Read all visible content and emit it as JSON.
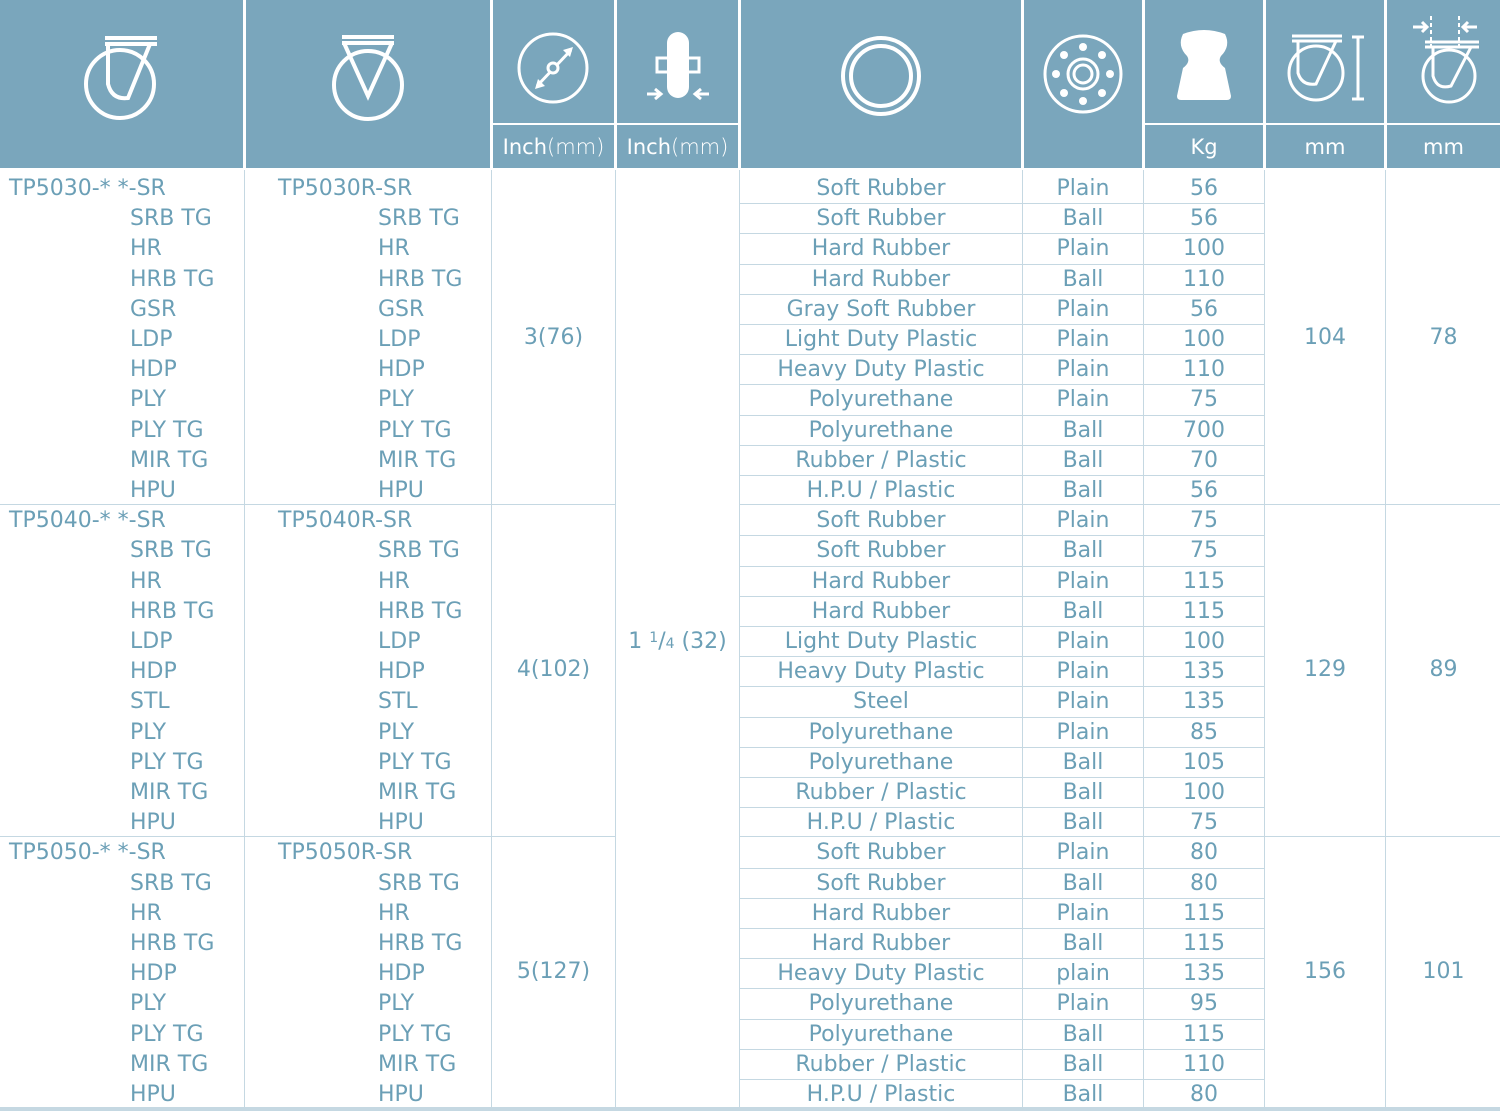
{
  "headers": {
    "diameter_unit_a": "Inch",
    "diameter_unit_b": "(mm)",
    "width_unit_a": "Inch",
    "width_unit_b": "(mm)",
    "load_unit": "Kg",
    "height_unit": "mm",
    "offset_unit": "mm"
  },
  "colors": {
    "header_bg": "#7aa6bc",
    "text": "#6b9fb6",
    "rule": "#c5d8e2"
  },
  "icons": [
    "swivel-caster-icon",
    "rigid-caster-icon",
    "wheel-diameter-icon",
    "wheel-width-icon",
    "tread-material-icon",
    "bearing-icon",
    "load-capacity-icon",
    "overall-height-icon",
    "swivel-offset-icon"
  ],
  "width_value": {
    "whole": "1 ",
    "num": "1",
    "slash": "/",
    "den": "4",
    "rest": " (32)"
  },
  "groups": [
    {
      "swivel_head": "TP5030-* *-SR",
      "rigid_head": "TP5030R-SR",
      "codes": [
        "SRB TG",
        "HR",
        "HRB TG",
        "GSR",
        "LDP",
        "HDP",
        "PLY",
        "PLY TG",
        "MIR TG",
        "HPU"
      ],
      "diameter": "3(76)",
      "height": "104",
      "offset": "78",
      "rows": [
        [
          "Soft Rubber",
          "Plain",
          "56"
        ],
        [
          "Soft Rubber",
          "Ball",
          "56"
        ],
        [
          "Hard Rubber",
          "Plain",
          "100"
        ],
        [
          "Hard Rubber",
          "Ball",
          "110"
        ],
        [
          "Gray Soft Rubber",
          "Plain",
          "56"
        ],
        [
          "Light Duty Plastic",
          "Plain",
          "100"
        ],
        [
          "Heavy Duty Plastic",
          "Plain",
          "110"
        ],
        [
          "Polyurethane",
          "Plain",
          "75"
        ],
        [
          "Polyurethane",
          "Ball",
          "700"
        ],
        [
          "Rubber / Plastic",
          "Ball",
          "70"
        ],
        [
          "H.P.U / Plastic",
          "Ball",
          "56"
        ]
      ]
    },
    {
      "swivel_head": "TP5040-* *-SR",
      "rigid_head": "TP5040R-SR",
      "codes": [
        "SRB TG",
        "HR",
        "HRB TG",
        "LDP",
        "HDP",
        "STL",
        "PLY",
        "PLY TG",
        "MIR TG",
        "HPU"
      ],
      "diameter": "4(102)",
      "height": "129",
      "offset": "89",
      "rows": [
        [
          "Soft Rubber",
          "Plain",
          "75"
        ],
        [
          "Soft Rubber",
          "Ball",
          "75"
        ],
        [
          "Hard Rubber",
          "Plain",
          "115"
        ],
        [
          "Hard Rubber",
          "Ball",
          "115"
        ],
        [
          "Light Duty Plastic",
          "Plain",
          "100"
        ],
        [
          "Heavy Duty Plastic",
          "Plain",
          "135"
        ],
        [
          "Steel",
          "Plain",
          "135"
        ],
        [
          "Polyurethane",
          "Plain",
          "85"
        ],
        [
          "Polyurethane",
          "Ball",
          "105"
        ],
        [
          "Rubber / Plastic",
          "Ball",
          "100"
        ],
        [
          "H.P.U / Plastic",
          "Ball",
          "75"
        ]
      ]
    },
    {
      "swivel_head": "TP5050-* *-SR",
      "rigid_head": "TP5050R-SR",
      "codes": [
        "SRB TG",
        "HR",
        "HRB TG",
        "HDP",
        "PLY",
        "PLY TG",
        "MIR TG",
        "HPU"
      ],
      "diameter": "5(127)",
      "height": "156",
      "offset": "101",
      "rows": [
        [
          "Soft Rubber",
          "Plain",
          "80"
        ],
        [
          "Soft Rubber",
          "Ball",
          "80"
        ],
        [
          "Hard Rubber",
          "Plain",
          "115"
        ],
        [
          "Hard Rubber",
          "Ball",
          "115"
        ],
        [
          "Heavy Duty Plastic",
          "plain",
          "135"
        ],
        [
          "Polyurethane",
          "Plain",
          "95"
        ],
        [
          "Polyurethane",
          "Ball",
          "115"
        ],
        [
          "Rubber / Plastic",
          "Ball",
          "110"
        ],
        [
          "H.P.U / Plastic",
          "Ball",
          "80"
        ]
      ]
    }
  ]
}
